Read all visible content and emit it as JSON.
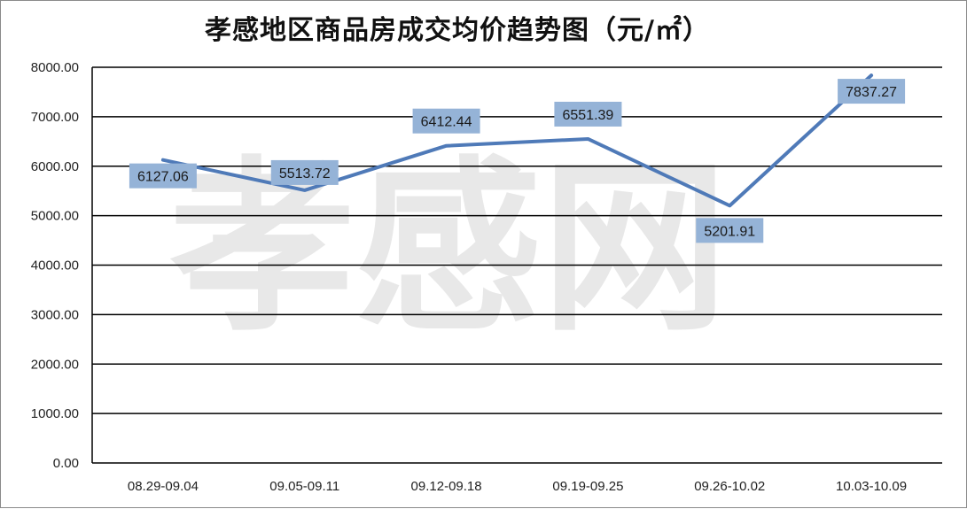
{
  "chart_data": {
    "type": "line",
    "title": "孝感地区商品房成交均价趋势图（元/㎡）",
    "categories": [
      "08.29-09.04",
      "09.05-09.11",
      "09.12-09.18",
      "09.19-09.25",
      "09.26-10.02",
      "10.03-10.09"
    ],
    "series": [
      {
        "values": [
          6127.06,
          5513.72,
          6412.44,
          6551.39,
          5201.91,
          7837.27
        ],
        "labels": [
          "6127.06",
          "5513.72",
          "6412.44",
          "6551.39",
          "5201.91",
          "7837.27"
        ]
      }
    ],
    "y_ticks": [
      "0.00",
      "1000.00",
      "2000.00",
      "3000.00",
      "4000.00",
      "5000.00",
      "6000.00",
      "7000.00",
      "8000.00"
    ],
    "ylim": [
      0,
      8000
    ],
    "grid": true,
    "colors": {
      "line": "#4f7ab8",
      "label_bg": "#95b3d7",
      "grid": "#000000"
    }
  },
  "watermark": "孝感网"
}
